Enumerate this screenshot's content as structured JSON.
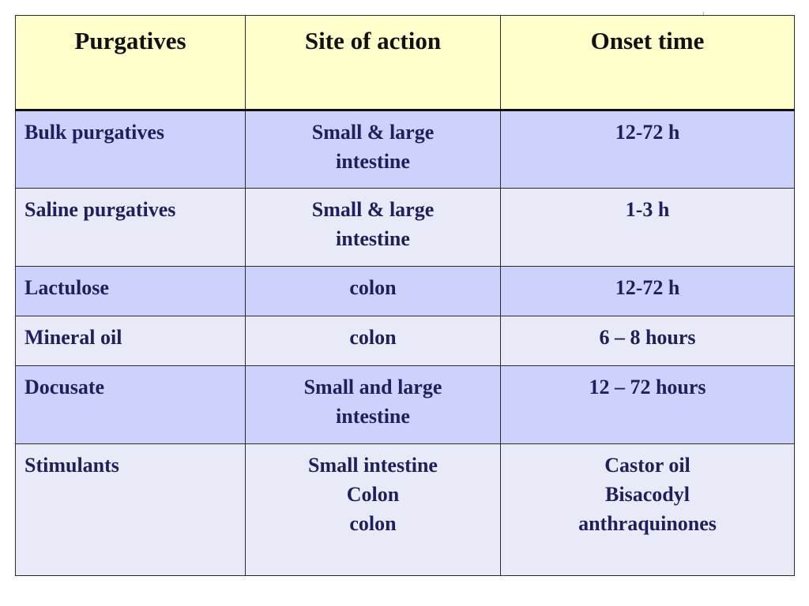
{
  "table": {
    "headers": [
      "Purgatives",
      "Site of action",
      "Onset time"
    ],
    "rows": [
      {
        "purgative": "Bulk purgatives",
        "site": [
          "Small & large",
          "intestine"
        ],
        "onset": [
          "12-72 h"
        ]
      },
      {
        "purgative": "Saline purgatives",
        "site": [
          "Small & large",
          "intestine"
        ],
        "onset": [
          "1-3 h"
        ]
      },
      {
        "purgative": "Lactulose",
        "site": [
          "colon"
        ],
        "onset": [
          "12-72 h"
        ]
      },
      {
        "purgative": "Mineral oil",
        "site": [
          "colon"
        ],
        "onset": [
          "6 – 8 hours"
        ]
      },
      {
        "purgative": "Docusate",
        "site": [
          "Small and large",
          "intestine"
        ],
        "onset": [
          "12 – 72 hours"
        ]
      },
      {
        "purgative": "Stimulants",
        "site": [
          "Small intestine",
          "Colon",
          "colon"
        ],
        "onset": [
          "Castor oil",
          "Bisacodyl",
          "anthraquinones"
        ]
      }
    ]
  },
  "colors": {
    "header_bg": "#ffffcc",
    "row_dark": "#ccd2fb",
    "row_light": "#e8eaf7",
    "text": "#1f1f5e"
  }
}
